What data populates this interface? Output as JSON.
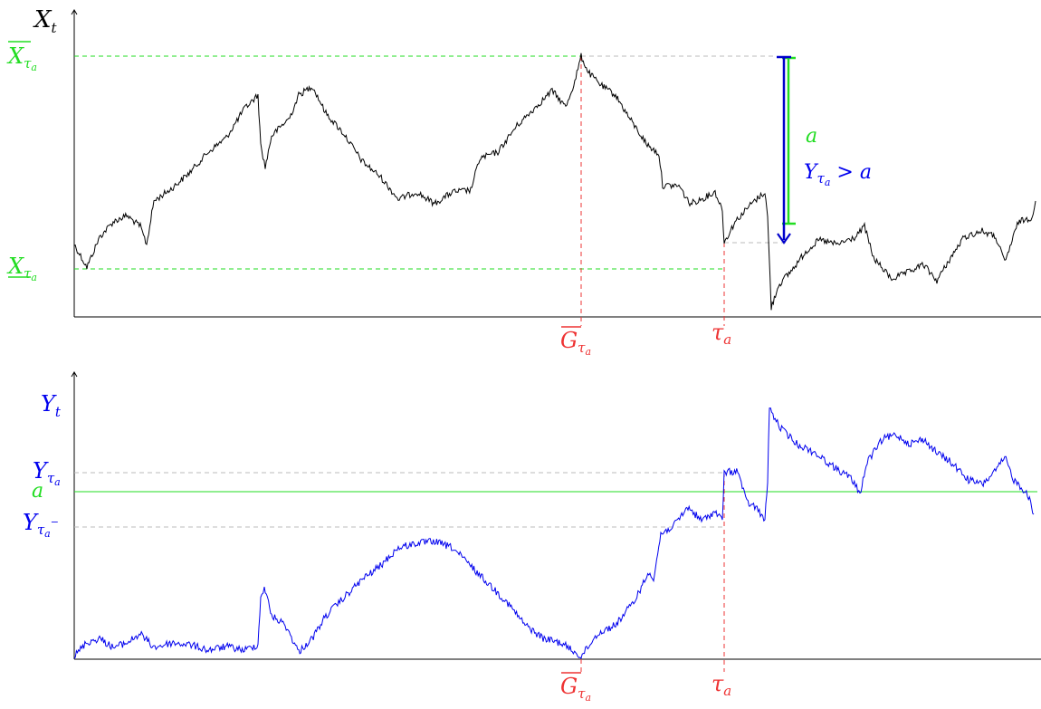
{
  "colors": {
    "x_path": "#000000",
    "y_path": "#0000ee",
    "green": "#22dd22",
    "red": "#ee3333",
    "gray": "#bbbbbb",
    "blue_arrow": "#0000cc"
  },
  "top_panel": {
    "y_axis_label": {
      "main": "X",
      "sub": "t"
    },
    "max_label": {
      "main": "X",
      "sub": "τ",
      "sub2": "a"
    },
    "min_label": {
      "main": "X",
      "sub": "τ",
      "sub2": "a"
    },
    "g_label": {
      "main": "G",
      "sub": "τ",
      "sub2": "a"
    },
    "tau_label": {
      "main": "τ",
      "sub": "a"
    },
    "a_label": "a",
    "y_gt_a_label": {
      "main": "Y",
      "sub": "τ",
      "sub2": "a",
      "rest": " > a"
    }
  },
  "bottom_panel": {
    "y_axis_label": {
      "main": "Y",
      "sub": "t"
    },
    "y_tau_label": {
      "main": "Y",
      "sub": "τ",
      "sub2": "a"
    },
    "a_label": "a",
    "y_tau_minus_label": {
      "main": "Y",
      "sub": "τ",
      "sub2": "a",
      "sup": "−"
    },
    "g_label": {
      "main": "G",
      "sub": "τ",
      "sub2": "a"
    },
    "tau_label": {
      "main": "τ",
      "sub": "a"
    }
  }
}
